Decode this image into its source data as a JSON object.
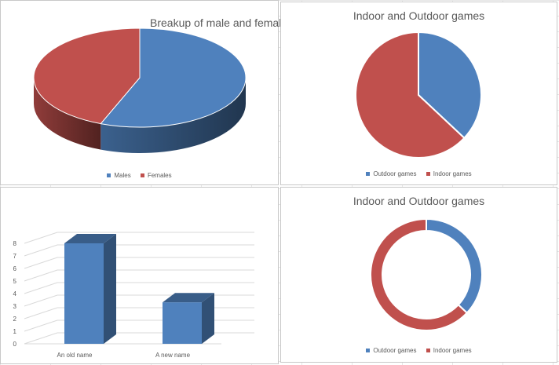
{
  "chart_data": [
    {
      "type": "pie",
      "variant": "3d",
      "title": "Breakup of male and female",
      "labels": [
        "Males",
        "Females"
      ],
      "values": [
        56,
        44
      ],
      "colors": [
        "#4f81bd",
        "#c0504d"
      ],
      "legend_position": "bottom"
    },
    {
      "type": "pie",
      "title": "Indoor and Outdoor games",
      "labels": [
        "Outdoor games",
        "Indoor games"
      ],
      "values": [
        37,
        63
      ],
      "colors": [
        "#4f81bd",
        "#c0504d"
      ],
      "legend_position": "bottom"
    },
    {
      "type": "bar",
      "variant": "3d",
      "title": "",
      "categories": [
        "An old name",
        "A new name"
      ],
      "values": [
        8,
        3.3
      ],
      "ylim": [
        0,
        8
      ],
      "yticks": [
        0,
        1,
        2,
        3,
        4,
        5,
        6,
        7,
        8
      ],
      "grid": true,
      "color": "#4f81bd"
    },
    {
      "type": "pie",
      "variant": "doughnut",
      "title": "Indoor and Outdoor games",
      "labels": [
        "Outdoor games",
        "Indoor games"
      ],
      "values": [
        37,
        63
      ],
      "colors": [
        "#4f81bd",
        "#c0504d"
      ],
      "legend_position": "bottom"
    }
  ]
}
